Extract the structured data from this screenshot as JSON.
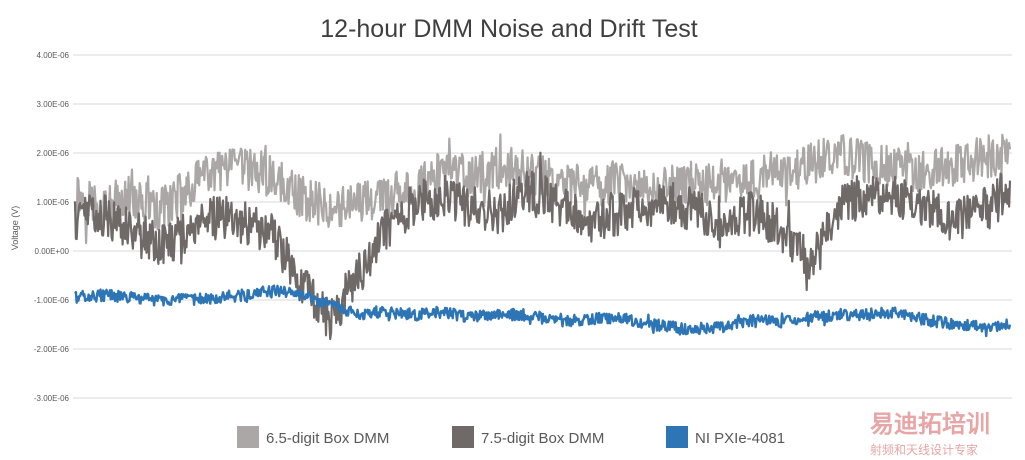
{
  "chart_data": {
    "type": "line",
    "title": "12-hour DMM Noise and Drift Test",
    "xlabel": "",
    "ylabel": "Voltage (V)",
    "ylim": [
      -3e-06,
      4e-06
    ],
    "y_ticks": [
      {
        "value": 4e-06,
        "label": "4.00E-06"
      },
      {
        "value": 3e-06,
        "label": "3.00E-06"
      },
      {
        "value": 2e-06,
        "label": "2.00E-06"
      },
      {
        "value": 1e-06,
        "label": "1.00E-06"
      },
      {
        "value": 0,
        "label": "0.00E+00"
      },
      {
        "value": -1e-06,
        "label": "-1.00E-06"
      },
      {
        "value": -2e-06,
        "label": "-2.00E-06"
      },
      {
        "value": -3e-06,
        "label": "-3.00E-06"
      }
    ],
    "grid": true,
    "legend_position": "bottom",
    "series": [
      {
        "name": "6.5-digit Box DMM",
        "color": "#aba7a6",
        "noise_amplitude": 4.5e-07,
        "values": [
          1.2e-06,
          9e-07,
          1.1e-06,
          8e-07,
          1.3e-06,
          1.6e-06,
          1.7e-06,
          1.5e-06,
          1.1e-06,
          9e-07,
          1e-06,
          1.1e-06,
          1.3e-06,
          1.6e-06,
          1.5e-06,
          1.7e-06,
          1.6e-06,
          1.4e-06,
          1.3e-06,
          1.4e-06,
          1.2e-06,
          1.3e-06,
          1.4e-06,
          1.3e-06,
          1.5e-06,
          1.6e-06,
          1.8e-06,
          2e-06,
          1.8e-06,
          1.7e-06,
          1.6e-06,
          1.7e-06,
          1.9e-06,
          2e-06
        ]
      },
      {
        "name": "7.5-digit Box DMM",
        "color": "#6f6a68",
        "noise_amplitude": 4.5e-07,
        "values": [
          6e-07,
          7e-07,
          5e-07,
          1e-07,
          4e-07,
          7e-07,
          6e-07,
          3e-07,
          -6e-07,
          -1.4e-06,
          -5e-07,
          5e-07,
          1e-06,
          1.1e-06,
          9e-07,
          8e-07,
          1.2e-06,
          1e-06,
          6e-07,
          7e-07,
          9e-07,
          1e-06,
          8e-07,
          6e-07,
          8e-07,
          4e-07,
          -3e-07,
          9e-07,
          1.2e-06,
          1.1e-06,
          9e-07,
          6e-07,
          8e-07,
          1.3e-06
        ]
      },
      {
        "name": "NI PXIe-4081",
        "color": "#2e75b6",
        "noise_amplitude": 1.2e-07,
        "values": [
          -9.5e-07,
          -9e-07,
          -9.5e-07,
          -1e-06,
          -1e-06,
          -9.5e-07,
          -9e-07,
          -8e-07,
          -9e-07,
          -1.1e-06,
          -1.3e-06,
          -1.25e-06,
          -1.3e-06,
          -1.25e-06,
          -1.35e-06,
          -1.3e-06,
          -1.3e-06,
          -1.45e-06,
          -1.4e-06,
          -1.35e-06,
          -1.45e-06,
          -1.55e-06,
          -1.65e-06,
          -1.5e-06,
          -1.4e-06,
          -1.45e-06,
          -1.35e-06,
          -1.3e-06,
          -1.3e-06,
          -1.25e-06,
          -1.4e-06,
          -1.5e-06,
          -1.55e-06,
          -1.5e-06
        ]
      }
    ]
  },
  "watermark": {
    "line1": "易迪拓培训",
    "line2": "射频和天线设计专家"
  }
}
